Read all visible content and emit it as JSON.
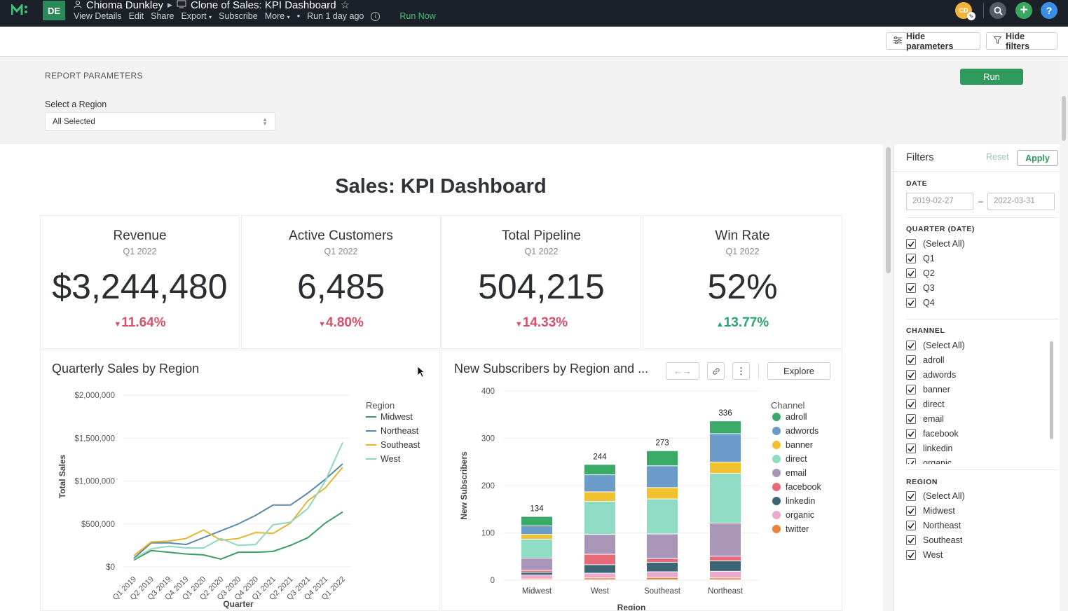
{
  "app": {
    "logo": "metabase-logo",
    "workspace": "DE"
  },
  "breadcrumb": {
    "user": "Chioma Dunkley",
    "report": "Clone of Sales: KPI Dashboard"
  },
  "menu": {
    "items": [
      "View Details",
      "Edit",
      "Share",
      "Export",
      "Subscribe",
      "More"
    ],
    "last_run": "Run 1 day ago",
    "run_now": "Run Now"
  },
  "toolbar": {
    "hide_parameters": "Hide parameters",
    "hide_filters": "Hide filters"
  },
  "params": {
    "heading": "REPORT PARAMETERS",
    "run": "Run",
    "region_label": "Select a Region",
    "region_value": "All Selected"
  },
  "dashboard": {
    "title": "Sales: KPI Dashboard"
  },
  "kpis": [
    {
      "title": "Revenue",
      "period": "Q1 2022",
      "value": "$3,244,480",
      "delta": "11.64%",
      "dir": "down"
    },
    {
      "title": "Active Customers",
      "period": "Q1 2022",
      "value": "6,485",
      "delta": "4.80%",
      "dir": "down"
    },
    {
      "title": "Total Pipeline",
      "period": "Q1 2022",
      "value": "504,215",
      "delta": "14.33%",
      "dir": "down"
    },
    {
      "title": "Win Rate",
      "period": "Q1 2022",
      "value": "52%",
      "delta": "13.77%",
      "dir": "up"
    }
  ],
  "panels": {
    "left_title": "Quarterly Sales by Region",
    "right_title": "New Subscribers by Region and ...",
    "explore": "Explore"
  },
  "chart_data": [
    {
      "type": "line",
      "title": "Quarterly Sales by Region",
      "xlabel": "Quarter",
      "ylabel": "Total Sales",
      "ylim": [
        0,
        2000000
      ],
      "yticks": [
        "$0",
        "$500,000",
        "$1,000,000",
        "$1,500,000",
        "$2,000,000"
      ],
      "categories": [
        "Q1 2019",
        "Q2 2019",
        "Q3 2019",
        "Q4 2019",
        "Q1 2020",
        "Q2 2020",
        "Q3 2020",
        "Q4 2020",
        "Q1 2021",
        "Q2 2021",
        "Q3 2021",
        "Q4 2021",
        "Q1 2022"
      ],
      "legend_title": "Region",
      "series": [
        {
          "name": "Midwest",
          "color": "#3a9e63",
          "values": [
            80000,
            190000,
            170000,
            150000,
            140000,
            90000,
            170000,
            170000,
            180000,
            250000,
            340000,
            510000,
            640000
          ]
        },
        {
          "name": "Northeast",
          "color": "#5b87a8",
          "values": [
            100000,
            280000,
            280000,
            260000,
            340000,
            420000,
            500000,
            600000,
            720000,
            720000,
            860000,
            1020000,
            1200000
          ]
        },
        {
          "name": "Southeast",
          "color": "#e8b330",
          "values": [
            130000,
            290000,
            300000,
            330000,
            430000,
            310000,
            330000,
            400000,
            390000,
            510000,
            770000,
            920000,
            1160000
          ]
        },
        {
          "name": "West",
          "color": "#8fd8c0",
          "values": [
            90000,
            210000,
            240000,
            220000,
            220000,
            330000,
            250000,
            260000,
            490000,
            520000,
            680000,
            1000000,
            1450000
          ]
        }
      ]
    },
    {
      "type": "bar",
      "stacked": true,
      "title": "New Subscribers by Region and Channel",
      "xlabel": "Region",
      "ylabel": "New Subscribers",
      "ylim": [
        0,
        400
      ],
      "yticks": [
        "0",
        "100",
        "200",
        "300",
        "400"
      ],
      "categories": [
        "Midwest",
        "West",
        "Southeast",
        "Northeast"
      ],
      "totals": [
        "134",
        "244",
        "273",
        "336"
      ],
      "legend_title": "Channel",
      "series": [
        {
          "name": "twitter",
          "color": "#e8833a",
          "values": [
            2,
            4,
            5,
            4
          ]
        },
        {
          "name": "organic",
          "color": "#eba9cf",
          "values": [
            8,
            10,
            12,
            14
          ]
        },
        {
          "name": "linkedin",
          "color": "#3c6575",
          "values": [
            6,
            18,
            20,
            22
          ]
        },
        {
          "name": "facebook",
          "color": "#e86a78",
          "values": [
            4,
            22,
            8,
            10
          ]
        },
        {
          "name": "email",
          "color": "#a995b8",
          "values": [
            26,
            42,
            52,
            70
          ]
        },
        {
          "name": "direct",
          "color": "#8fdbc3",
          "values": [
            40,
            70,
            74,
            105
          ]
        },
        {
          "name": "banner",
          "color": "#f2c12e",
          "values": [
            10,
            20,
            24,
            24
          ]
        },
        {
          "name": "adwords",
          "color": "#6b9bc9",
          "values": [
            18,
            36,
            46,
            60
          ]
        },
        {
          "name": "adroll",
          "color": "#3aaa66",
          "values": [
            20,
            22,
            32,
            27
          ]
        }
      ]
    }
  ],
  "filters": {
    "title": "Filters",
    "reset": "Reset",
    "apply": "Apply",
    "date_label": "DATE",
    "date_from": "2019-02-27",
    "date_sep": "–",
    "date_to": "2022-03-31",
    "quarter_label": "QUARTER (DATE)",
    "quarter_items": [
      "(Select All)",
      "Q1",
      "Q2",
      "Q3",
      "Q4"
    ],
    "channel_label": "CHANNEL",
    "channel_items": [
      "(Select All)",
      "adroll",
      "adwords",
      "banner",
      "direct",
      "email",
      "facebook",
      "linkedin",
      "organic"
    ],
    "region_label": "REGION",
    "region_items": [
      "(Select All)",
      "Midwest",
      "Northeast",
      "Southeast",
      "West"
    ]
  }
}
